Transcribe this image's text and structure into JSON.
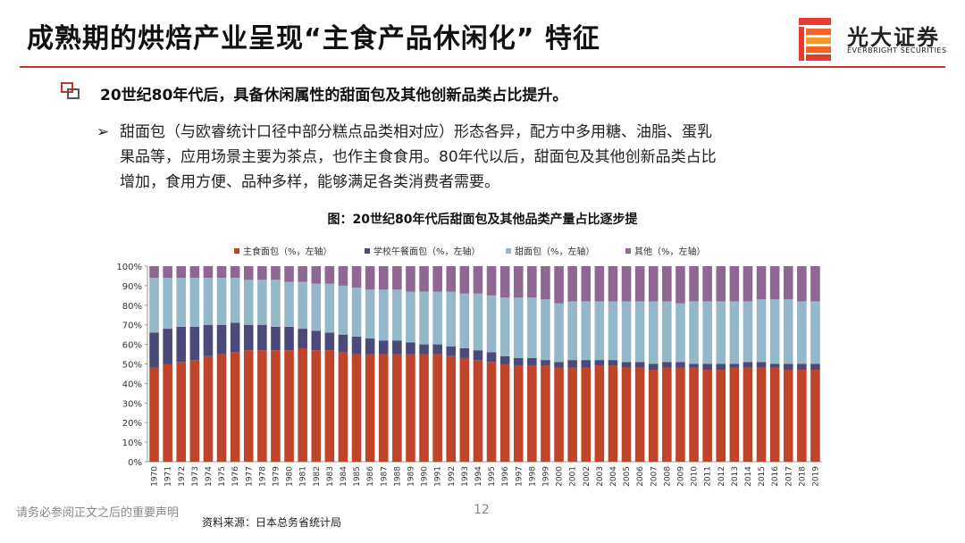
{
  "header": {
    "title": "成熟期的烘焙产业呈现“主食产品休闲化” 特征",
    "logo_name": "光大证券",
    "logo_sub": "EVERBRIGHT SECURITIES"
  },
  "bullet": {
    "heading": "20世纪80年代后，具备休闲属性的甜面包及其他创新品类占比提升。",
    "lines": [
      "甜面包（与欧睿统计口径中部分糕点品类相对应）形态各异，配方中多用糖、油脂、蛋乳",
      "果品等，应用场景主要为茶点，也作主食食用。80年代以后，甜面包及其他创新品类占比",
      "增加，食用方便、品种多样，能够满足各类消费者需要。"
    ]
  },
  "chart_data": {
    "type": "stacked_bar",
    "title": "图：20世纪80年代后甜面包及其他品类产量占比逐步提",
    "categories": [
      "1970",
      "1971",
      "1972",
      "1973",
      "1974",
      "1975",
      "1976",
      "1977",
      "1978",
      "1979",
      "1980",
      "1981",
      "1982",
      "1983",
      "1984",
      "1985",
      "1986",
      "1987",
      "1988",
      "1989",
      "1990",
      "1991",
      "1992",
      "1993",
      "1994",
      "1995",
      "1996",
      "1997",
      "1998",
      "1999",
      "2000",
      "2001",
      "2002",
      "2003",
      "2004",
      "2005",
      "2006",
      "2007",
      "2008",
      "2009",
      "2010",
      "2011",
      "2012",
      "2013",
      "2014",
      "2015",
      "2016",
      "2017",
      "2018",
      "2019"
    ],
    "series": [
      {
        "name": "主食面包（%，左轴）",
        "color": "#c0442a",
        "values": [
          48,
          50,
          51,
          52,
          54,
          55,
          56,
          57,
          57,
          57,
          57,
          58,
          57,
          57,
          56,
          55,
          55,
          55,
          55,
          55,
          55,
          55,
          54,
          53,
          52,
          51,
          50,
          49,
          49,
          49,
          48,
          48,
          48,
          49,
          49,
          48,
          48,
          47,
          48,
          48,
          48,
          47,
          47,
          48,
          48,
          48,
          48,
          47,
          47,
          47
        ]
      },
      {
        "name": "学校午餐面包（%，左轴）",
        "color": "#4b4a7a",
        "values": [
          18,
          18,
          18,
          17,
          16,
          15,
          15,
          13,
          13,
          12,
          12,
          10,
          10,
          9,
          9,
          9,
          8,
          7,
          7,
          6,
          5,
          5,
          5,
          5,
          5,
          5,
          4,
          4,
          4,
          3,
          3,
          4,
          4,
          3,
          3,
          3,
          3,
          3,
          3,
          3,
          2,
          3,
          3,
          2,
          3,
          3,
          2,
          3,
          3,
          3
        ]
      },
      {
        "name": "甜面包（%，左轴）",
        "color": "#94b8c8",
        "values": [
          28,
          26,
          25,
          25,
          24,
          24,
          23,
          23,
          23,
          24,
          23,
          24,
          24,
          25,
          25,
          25,
          25,
          26,
          26,
          26,
          27,
          27,
          28,
          28,
          29,
          29,
          30,
          31,
          31,
          31,
          30,
          30,
          30,
          30,
          30,
          31,
          31,
          32,
          31,
          30,
          32,
          32,
          32,
          32,
          31,
          32,
          33,
          33,
          32,
          32
        ]
      },
      {
        "name": "其他（%，左轴）",
        "color": "#8e6890",
        "values": [
          6,
          6,
          6,
          6,
          6,
          6,
          6,
          7,
          7,
          7,
          8,
          8,
          9,
          9,
          10,
          11,
          12,
          12,
          12,
          13,
          13,
          13,
          13,
          14,
          14,
          15,
          16,
          16,
          16,
          17,
          19,
          18,
          18,
          18,
          18,
          18,
          18,
          18,
          18,
          19,
          18,
          18,
          18,
          18,
          18,
          17,
          17,
          17,
          18,
          18
        ]
      }
    ],
    "ylim": [
      0,
      100
    ],
    "yticks": [
      {
        "value": 0,
        "label": "0%"
      },
      {
        "value": 10,
        "label": "10%"
      },
      {
        "value": 20,
        "label": "20%"
      },
      {
        "value": 30,
        "label": "30%"
      },
      {
        "value": 40,
        "label": "40%"
      },
      {
        "value": 50,
        "label": "50%"
      },
      {
        "value": 60,
        "label": "60%"
      },
      {
        "value": 70,
        "label": "70%"
      },
      {
        "value": 80,
        "label": "80%"
      },
      {
        "value": 90,
        "label": "90%"
      },
      {
        "value": 100,
        "label": "100%"
      }
    ],
    "legend": "top"
  },
  "footer": {
    "disclaimer": "请务必参阅正文之后的重要声明",
    "page": 12,
    "source": "资料来源：日本总务省统计局"
  }
}
